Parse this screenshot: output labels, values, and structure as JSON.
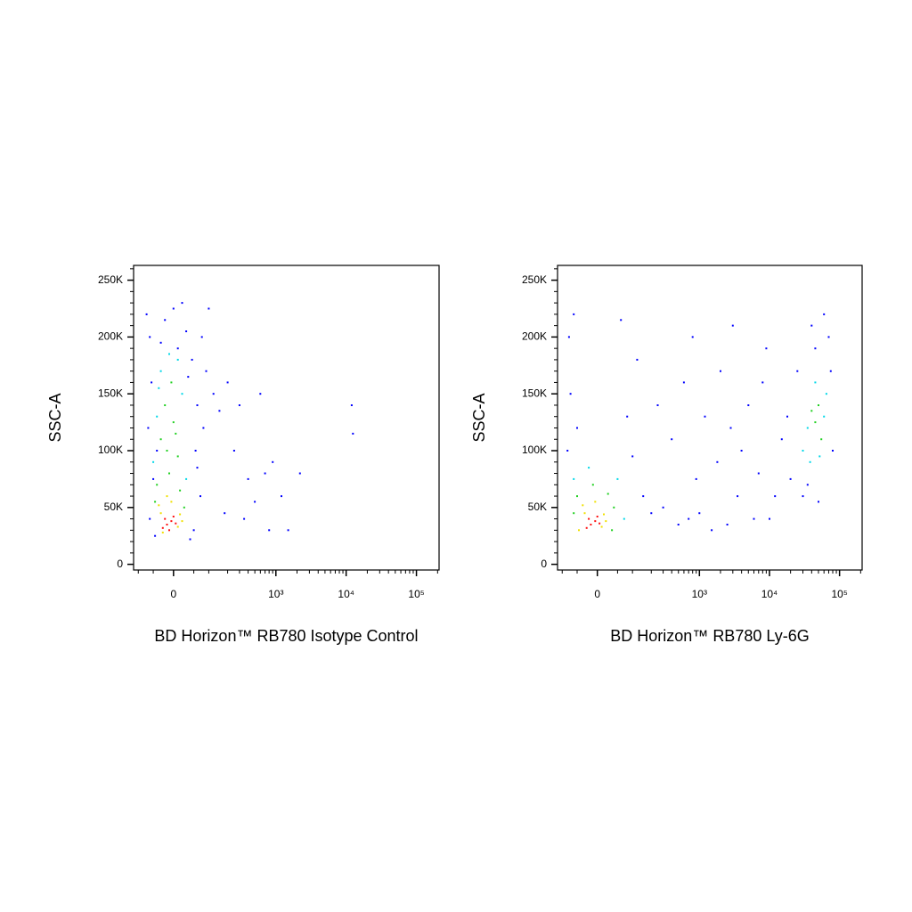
{
  "chart_data": [
    {
      "type": "scatter",
      "xlabel": "BD Horizon™ RB780 Isotype Control",
      "ylabel": "SSC-A",
      "xscale": "biexponential",
      "xlim": [
        -120,
        210000
      ],
      "ylim": [
        -5000,
        263000
      ],
      "xticks": [
        0,
        {
          "value": 1000,
          "label": "10³"
        },
        {
          "value": 10000,
          "label": "10⁴"
        },
        {
          "value": 100000,
          "label": "10⁵"
        }
      ],
      "xminorticks": [
        -100,
        -50,
        50,
        100,
        200,
        300,
        400,
        500,
        600,
        700,
        800,
        900,
        2000,
        3000,
        4000,
        5000,
        6000,
        7000,
        8000,
        9000,
        20000,
        30000,
        40000,
        50000,
        60000,
        70000,
        80000,
        90000,
        200000
      ],
      "yticks": [
        0,
        {
          "value": 50000,
          "label": "50K"
        },
        {
          "value": 100000,
          "label": "100K"
        },
        {
          "value": 150000,
          "label": "150K"
        },
        {
          "value": 200000,
          "label": "200K"
        },
        {
          "value": 250000,
          "label": "250K"
        }
      ],
      "yminorticks": [
        10000,
        20000,
        30000,
        40000,
        60000,
        70000,
        80000,
        90000,
        110000,
        120000,
        130000,
        140000,
        160000,
        170000,
        180000,
        190000,
        210000,
        220000,
        230000,
        240000,
        260000
      ],
      "series": [
        {
          "color": "#0000ff",
          "x": [
            -60,
            -20,
            0,
            30,
            -55,
            45,
            60,
            -65,
            55,
            80,
            70,
            -60,
            50,
            -45,
            40,
            90,
            120,
            150,
            200,
            300,
            250,
            400,
            500,
            350,
            180,
            600,
            700,
            900,
            1200,
            1500,
            800,
            2200,
            12000,
            12500,
            100,
            -70,
            20,
            -30,
            10,
            -50,
            60,
            35,
            -40,
            75
          ],
          "values": [
            200000,
            215000,
            225000,
            205000,
            160000,
            180000,
            140000,
            120000,
            100000,
            120000,
            60000,
            40000,
            30000,
            25000,
            22000,
            170000,
            150000,
            135000,
            160000,
            140000,
            100000,
            75000,
            55000,
            40000,
            45000,
            150000,
            80000,
            90000,
            60000,
            30000,
            30000,
            80000,
            140000,
            115000,
            225000,
            220000,
            230000,
            195000,
            190000,
            75000,
            85000,
            165000,
            100000,
            200000
          ]
        },
        {
          "color": "#00d8e8",
          "x": [
            -40,
            20,
            -30,
            10,
            -50,
            30,
            -10,
            -35
          ],
          "values": [
            130000,
            150000,
            170000,
            180000,
            90000,
            75000,
            185000,
            155000
          ]
        },
        {
          "color": "#20d020",
          "x": [
            -40,
            -10,
            10,
            -30,
            0,
            -20,
            15,
            -45,
            25,
            -5,
            -15,
            5
          ],
          "values": [
            70000,
            80000,
            95000,
            110000,
            125000,
            140000,
            65000,
            55000,
            50000,
            160000,
            100000,
            115000
          ]
        },
        {
          "color": "#f0e000",
          "x": [
            -30,
            10,
            -35,
            15,
            -5,
            -25,
            20,
            -15
          ],
          "values": [
            45000,
            33000,
            52000,
            44000,
            55000,
            28000,
            38000,
            60000
          ]
        },
        {
          "color": "#ff1010",
          "x": [
            -15,
            -5,
            -25,
            0,
            -10,
            5,
            -20
          ],
          "values": [
            35000,
            38000,
            32000,
            42000,
            30000,
            36000,
            40000
          ]
        }
      ]
    },
    {
      "type": "scatter",
      "xlabel": "BD Horizon™ RB780 Ly-6G",
      "ylabel": "SSC-A",
      "xscale": "biexponential",
      "xlim": [
        -120,
        210000
      ],
      "ylim": [
        -5000,
        263000
      ],
      "xticks": [
        0,
        {
          "value": 1000,
          "label": "10³"
        },
        {
          "value": 10000,
          "label": "10⁴"
        },
        {
          "value": 100000,
          "label": "10⁵"
        }
      ],
      "xminorticks": [
        -100,
        -50,
        50,
        100,
        200,
        300,
        400,
        500,
        600,
        700,
        800,
        900,
        2000,
        3000,
        4000,
        5000,
        6000,
        7000,
        8000,
        9000,
        20000,
        30000,
        40000,
        50000,
        60000,
        70000,
        80000,
        90000,
        200000
      ],
      "yticks": [
        0,
        {
          "value": 50000,
          "label": "50K"
        },
        {
          "value": 100000,
          "label": "100K"
        },
        {
          "value": 150000,
          "label": "150K"
        },
        {
          "value": 200000,
          "label": "200K"
        },
        {
          "value": 250000,
          "label": "250K"
        }
      ],
      "yminorticks": [
        10000,
        20000,
        30000,
        40000,
        60000,
        70000,
        80000,
        90000,
        110000,
        120000,
        130000,
        140000,
        160000,
        170000,
        180000,
        190000,
        210000,
        220000,
        230000,
        240000,
        260000
      ],
      "series": [
        {
          "color": "#0000ff",
          "x": [
            -80,
            -70,
            -75,
            100,
            150,
            200,
            300,
            500,
            700,
            1000,
            1500,
            2500,
            400,
            600,
            800,
            1200,
            2000,
            3000,
            4000,
            5000,
            7000,
            9000,
            12000,
            15000,
            20000,
            25000,
            30000,
            70000,
            60000,
            45000,
            35000,
            80000,
            50000,
            250,
            120,
            -60,
            60,
            3500,
            6000,
            10000,
            18000,
            1800,
            900,
            2800,
            8000,
            40000,
            75000,
            -50,
            80
          ],
          "values": [
            100000,
            150000,
            200000,
            95000,
            60000,
            45000,
            50000,
            35000,
            40000,
            45000,
            30000,
            35000,
            110000,
            160000,
            200000,
            130000,
            170000,
            210000,
            100000,
            140000,
            80000,
            190000,
            60000,
            110000,
            75000,
            170000,
            60000,
            200000,
            220000,
            190000,
            70000,
            100000,
            55000,
            140000,
            180000,
            220000,
            215000,
            60000,
            40000,
            40000,
            130000,
            90000,
            75000,
            120000,
            160000,
            210000,
            170000,
            120000,
            130000
          ]
        },
        {
          "color": "#00d8e8",
          "x": [
            -60,
            50,
            -20,
            70,
            30000,
            60000,
            45000,
            38000,
            65000,
            52000,
            35000
          ],
          "values": [
            75000,
            75000,
            85000,
            40000,
            100000,
            130000,
            160000,
            90000,
            150000,
            95000,
            120000
          ]
        },
        {
          "color": "#20d020",
          "x": [
            -50,
            25,
            -10,
            40,
            -60,
            35,
            45000,
            55000,
            40000,
            50000
          ],
          "values": [
            60000,
            62000,
            70000,
            50000,
            45000,
            30000,
            125000,
            110000,
            135000,
            140000
          ]
        },
        {
          "color": "#f0e000",
          "x": [
            -30,
            10,
            -35,
            15,
            -5,
            20,
            -45
          ],
          "values": [
            45000,
            33000,
            52000,
            44000,
            55000,
            38000,
            30000
          ]
        },
        {
          "color": "#ff1010",
          "x": [
            -15,
            -5,
            -25,
            0,
            5,
            -20
          ],
          "values": [
            35000,
            38000,
            32000,
            42000,
            36000,
            40000
          ]
        }
      ]
    }
  ]
}
